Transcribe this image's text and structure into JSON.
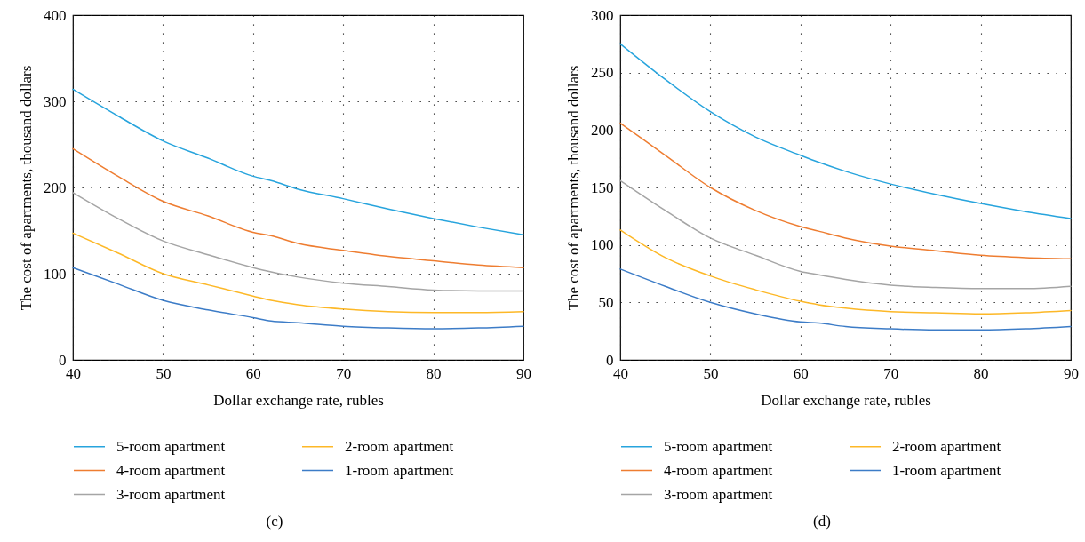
{
  "chart_data": [
    {
      "type": "line",
      "xlabel": "Dollar exchange rate, rubles",
      "ylabel": "The cost of apartments, thousand dollars",
      "annotations": [
        "(c)"
      ],
      "x": [
        40,
        45,
        50,
        55,
        60,
        62,
        65,
        70,
        75,
        80,
        85,
        90
      ],
      "series": [
        {
          "name": "5-room apartment",
          "color": "#27a4dd",
          "values": [
            314,
            283,
            254,
            234,
            213,
            208,
            198,
            187,
            175,
            164,
            154,
            145
          ]
        },
        {
          "name": "4-room apartment",
          "color": "#ee7d31",
          "values": [
            245,
            213,
            184,
            167,
            148,
            144,
            135,
            127,
            120,
            115,
            110,
            107
          ]
        },
        {
          "name": "3-room apartment",
          "color": "#a5a5a5",
          "values": [
            194,
            164,
            138,
            122,
            107,
            102,
            96,
            89,
            85,
            81,
            80,
            80
          ]
        },
        {
          "name": "2-room apartment",
          "color": "#fdb827",
          "values": [
            147,
            124,
            100,
            87,
            74,
            69,
            64,
            59,
            56,
            55,
            55,
            56
          ]
        },
        {
          "name": "1-room apartment",
          "color": "#3c7cc7",
          "values": [
            107,
            88,
            69,
            58,
            49,
            45,
            43,
            39,
            37,
            36,
            37,
            39
          ]
        }
      ],
      "xlim": [
        40,
        90
      ],
      "xticks": [
        40,
        50,
        60,
        70,
        80,
        90
      ],
      "ylim": [
        0,
        400
      ],
      "yticks": [
        0,
        100,
        200,
        300,
        400
      ],
      "grid": true,
      "legend": "bottom"
    },
    {
      "type": "line",
      "xlabel": "Dollar exchange rate, rubles",
      "ylabel": "The cost of apartments, thousand dollars",
      "annotations": [
        "(d)"
      ],
      "x": [
        40,
        45,
        50,
        55,
        60,
        62,
        65,
        70,
        75,
        80,
        85,
        90
      ],
      "series": [
        {
          "name": "5-room apartment",
          "color": "#27a4dd",
          "values": [
            275,
            244,
            216,
            194,
            178,
            172,
            164,
            153,
            144,
            136,
            129,
            123
          ]
        },
        {
          "name": "4-room apartment",
          "color": "#ee7d31",
          "values": [
            206,
            178,
            150,
            130,
            116,
            112,
            106,
            99,
            95,
            91,
            89,
            88
          ]
        },
        {
          "name": "3-room apartment",
          "color": "#a5a5a5",
          "values": [
            156,
            130,
            106,
            91,
            77,
            74,
            70,
            65,
            63,
            62,
            62,
            64
          ]
        },
        {
          "name": "2-room apartment",
          "color": "#fdb827",
          "values": [
            113,
            89,
            73,
            61,
            51,
            48,
            45,
            42,
            41,
            40,
            41,
            43
          ]
        },
        {
          "name": "1-room apartment",
          "color": "#3c7cc7",
          "values": [
            79,
            64,
            50,
            40,
            33,
            32,
            29,
            27,
            26,
            26,
            27,
            29
          ]
        }
      ],
      "xlim": [
        40,
        90
      ],
      "xticks": [
        40,
        50,
        60,
        70,
        80,
        90
      ],
      "ylim": [
        0,
        300
      ],
      "yticks": [
        0,
        50,
        100,
        150,
        200,
        250,
        300
      ],
      "grid": true,
      "legend": "bottom"
    }
  ]
}
